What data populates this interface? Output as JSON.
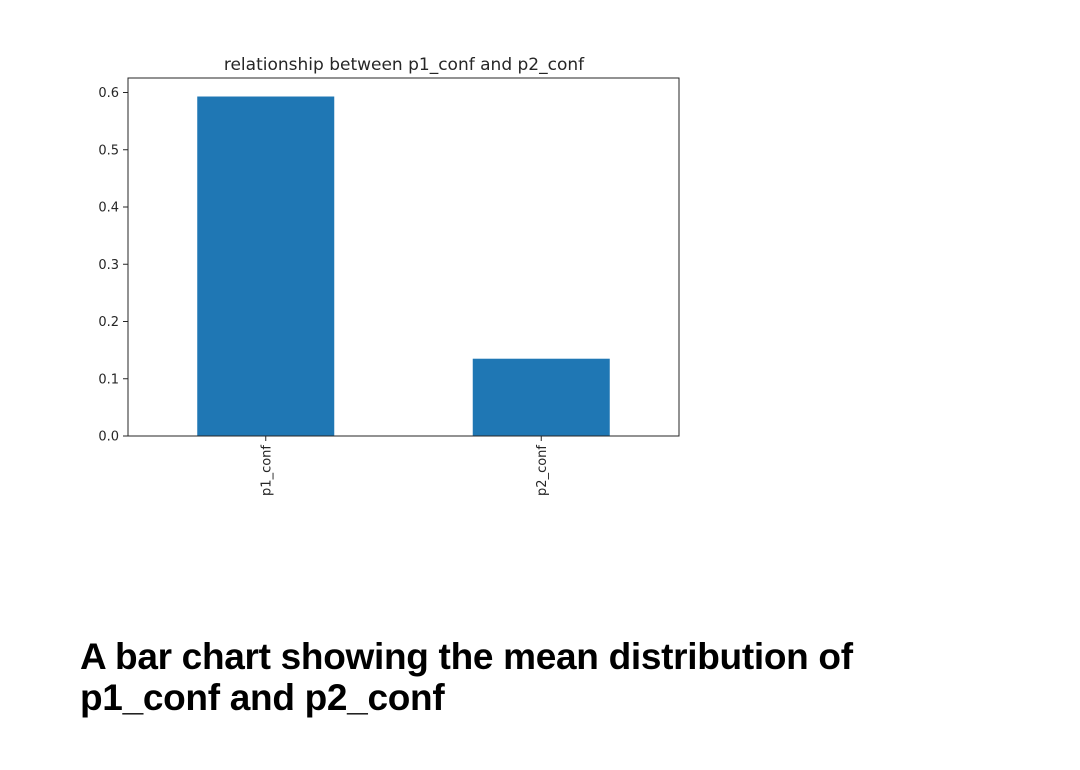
{
  "caption": "A bar chart showing the mean distribution of p1_conf and p2_conf",
  "chart_data": {
    "type": "bar",
    "title": "relationship between p1_conf and p2_conf",
    "xlabel": "",
    "ylabel": "",
    "categories": [
      "p1_conf",
      "p2_conf"
    ],
    "values": [
      0.593,
      0.135
    ],
    "ylim": [
      0,
      0.62
    ],
    "yticks": [
      "0.0",
      "0.1",
      "0.2",
      "0.3",
      "0.4",
      "0.5",
      "0.6"
    ],
    "ytick_values": [
      0.0,
      0.1,
      0.2,
      0.3,
      0.4,
      0.5,
      0.6
    ],
    "grid": false,
    "bar_color": "#1f77b4",
    "x_tick_rotation": "vertical"
  }
}
